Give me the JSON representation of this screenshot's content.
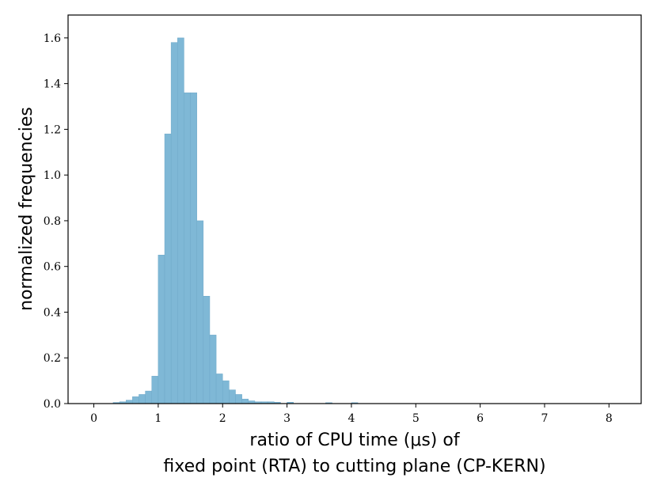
{
  "chart_data": {
    "type": "bar",
    "title": "",
    "xlabel_line1": "ratio of CPU time (μs) of",
    "xlabel_line2": "fixed point (RTA) to cutting plane (CP-KERN)",
    "ylabel": "normalized frequencies",
    "xlim": [
      -0.4,
      8.5
    ],
    "ylim": [
      0,
      1.7
    ],
    "xticks": [
      0,
      1,
      2,
      3,
      4,
      5,
      6,
      7,
      8
    ],
    "yticks": [
      0.0,
      0.2,
      0.4,
      0.6,
      0.8,
      1.0,
      1.2,
      1.4,
      1.6
    ],
    "grid": false,
    "bin_width": 0.1,
    "bins": [
      {
        "x0": 0.3,
        "value": 0.005
      },
      {
        "x0": 0.4,
        "value": 0.008
      },
      {
        "x0": 0.5,
        "value": 0.015
      },
      {
        "x0": 0.6,
        "value": 0.03
      },
      {
        "x0": 0.7,
        "value": 0.04
      },
      {
        "x0": 0.8,
        "value": 0.055
      },
      {
        "x0": 0.9,
        "value": 0.12
      },
      {
        "x0": 1.0,
        "value": 0.65
      },
      {
        "x0": 1.1,
        "value": 1.18
      },
      {
        "x0": 1.2,
        "value": 1.58
      },
      {
        "x0": 1.3,
        "value": 1.6
      },
      {
        "x0": 1.4,
        "value": 1.36
      },
      {
        "x0": 1.5,
        "value": 1.36
      },
      {
        "x0": 1.6,
        "value": 0.8
      },
      {
        "x0": 1.7,
        "value": 0.47
      },
      {
        "x0": 1.8,
        "value": 0.3
      },
      {
        "x0": 1.9,
        "value": 0.13
      },
      {
        "x0": 2.0,
        "value": 0.1
      },
      {
        "x0": 2.1,
        "value": 0.06
      },
      {
        "x0": 2.2,
        "value": 0.04
      },
      {
        "x0": 2.3,
        "value": 0.02
      },
      {
        "x0": 2.4,
        "value": 0.012
      },
      {
        "x0": 2.5,
        "value": 0.008
      },
      {
        "x0": 2.6,
        "value": 0.008
      },
      {
        "x0": 2.7,
        "value": 0.008
      },
      {
        "x0": 2.8,
        "value": 0.006
      },
      {
        "x0": 3.0,
        "value": 0.006
      },
      {
        "x0": 3.6,
        "value": 0.004
      },
      {
        "x0": 4.0,
        "value": 0.004
      }
    ],
    "colors": {
      "bar_fill": "#7fb8d6",
      "bar_edge": "#6fa9c9",
      "axis": "#000000"
    }
  }
}
